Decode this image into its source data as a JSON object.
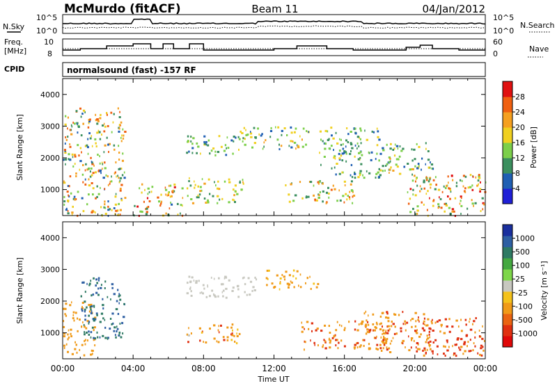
{
  "header": {
    "station": "McMurdo (fitACF)",
    "beam": "Beam 11",
    "date": "04/Jan/2012"
  },
  "sky_panel": {
    "left_label": "N.Sky",
    "right_label": "N.Search",
    "left_ticks": [
      "10^5",
      "10^0"
    ],
    "right_ticks": [
      "10^5",
      "10^0"
    ]
  },
  "freq_panel": {
    "left_label_1": "Freq.",
    "left_label_2": "[MHz]",
    "left_ticks": [
      "10",
      "8"
    ],
    "right_label": "Nave",
    "right_ticks": [
      "60",
      "0"
    ]
  },
  "cpid": {
    "label": "CPID",
    "value": "normalsound (fast) -157 RF"
  },
  "colors": {
    "power": [
      "#1f1fd6",
      "#1f5fb3",
      "#3b8f5e",
      "#7ccf4a",
      "#f0d020",
      "#f5a020",
      "#f06010",
      "#e01010"
    ],
    "velocity": [
      "#1a2f9e",
      "#2e5fa3",
      "#2e7a63",
      "#44a840",
      "#7ed649",
      "#c8c8c0",
      "#f4c21b",
      "#f09a18",
      "#ea6412",
      "#e03010",
      "#e00808"
    ]
  },
  "chart_data": [
    {
      "type": "heatmap",
      "name": "power",
      "xlabel": "",
      "ylabel": "Slant Range [km]",
      "x_tick_labels": [
        "00:00",
        "04:00",
        "08:00",
        "12:00",
        "16:00",
        "20:00",
        "00:00"
      ],
      "xlim": [
        0,
        24
      ],
      "ylim": [
        180,
        4500
      ],
      "y_ticks": [
        1000,
        2000,
        3000,
        4000
      ],
      "y_tick_labels": [
        "1000",
        "2000",
        "3000",
        "4000"
      ],
      "colorbar": {
        "label": "Power [dB]",
        "range": [
          0,
          32
        ],
        "tick_values": [
          4,
          8,
          12,
          16,
          20,
          24,
          28
        ],
        "tick_labels": [
          "4",
          "8",
          "12",
          "16",
          "20",
          "24",
          "28"
        ]
      },
      "scatter_regions": [
        {
          "hours": [
            0.0,
            3.5
          ],
          "range_km": [
            200,
            3600
          ],
          "level": [
            5,
            28
          ]
        },
        {
          "hours": [
            4.0,
            6.8
          ],
          "range_km": [
            200,
            1200
          ],
          "level": [
            6,
            30
          ]
        },
        {
          "hours": [
            7.0,
            10.3
          ],
          "range_km": [
            600,
            1400
          ],
          "level": [
            8,
            24
          ]
        },
        {
          "hours": [
            7.0,
            10.0
          ],
          "range_km": [
            2100,
            2800
          ],
          "level": [
            6,
            18
          ]
        },
        {
          "hours": [
            10.0,
            14.0
          ],
          "range_km": [
            2300,
            3000
          ],
          "level": [
            6,
            22
          ]
        },
        {
          "hours": [
            12.5,
            16.5
          ],
          "range_km": [
            600,
            1300
          ],
          "level": [
            8,
            26
          ]
        },
        {
          "hours": [
            14.5,
            18.0
          ],
          "range_km": [
            1400,
            3000
          ],
          "level": [
            5,
            18
          ]
        },
        {
          "hours": [
            18.0,
            21.0
          ],
          "range_km": [
            1500,
            2500
          ],
          "level": [
            6,
            22
          ]
        },
        {
          "hours": [
            19.5,
            24.0
          ],
          "range_km": [
            200,
            1500
          ],
          "level": [
            8,
            30
          ]
        }
      ]
    },
    {
      "type": "heatmap",
      "name": "velocity",
      "xlabel": "Time UT",
      "ylabel": "Slant Range [km]",
      "x_tick_labels": [
        "00:00",
        "04:00",
        "08:00",
        "12:00",
        "16:00",
        "20:00",
        "00:00"
      ],
      "xlim": [
        0,
        24
      ],
      "ylim": [
        180,
        4500
      ],
      "y_ticks": [
        1000,
        2000,
        3000,
        4000
      ],
      "y_tick_labels": [
        "1000",
        "2000",
        "3000",
        "4000"
      ],
      "colorbar": {
        "label": "Velocity [m s⁻¹]",
        "range": [
          -1500,
          1500
        ],
        "tick_values": [
          1000,
          500,
          100,
          25,
          -25,
          -100,
          -500,
          -1000
        ],
        "tick_labels": [
          "1000",
          "500",
          "100",
          "25",
          "-25",
          "-100",
          "-500",
          "-1000"
        ]
      },
      "scatter_regions": [
        {
          "hours": [
            0.0,
            1.8
          ],
          "range_km": [
            300,
            2000
          ],
          "velocity": [
            -500,
            -100
          ]
        },
        {
          "hours": [
            1.0,
            3.5
          ],
          "range_km": [
            800,
            2800
          ],
          "velocity": [
            100,
            800
          ]
        },
        {
          "hours": [
            7.0,
            10.0
          ],
          "range_km": [
            700,
            1300
          ],
          "velocity": [
            -600,
            0
          ]
        },
        {
          "hours": [
            7.0,
            11.0
          ],
          "range_km": [
            2100,
            2800
          ],
          "velocity": [
            -20,
            20
          ]
        },
        {
          "hours": [
            11.5,
            14.5
          ],
          "range_km": [
            2400,
            3000
          ],
          "velocity": [
            -300,
            -50
          ]
        },
        {
          "hours": [
            13.5,
            18.5
          ],
          "range_km": [
            500,
            1400
          ],
          "velocity": [
            -700,
            -100
          ]
        },
        {
          "hours": [
            17.0,
            21.0
          ],
          "range_km": [
            400,
            1700
          ],
          "velocity": [
            -600,
            -100
          ]
        },
        {
          "hours": [
            20.0,
            24.0
          ],
          "range_km": [
            300,
            1500
          ],
          "velocity": [
            -1000,
            -100
          ]
        }
      ]
    }
  ]
}
